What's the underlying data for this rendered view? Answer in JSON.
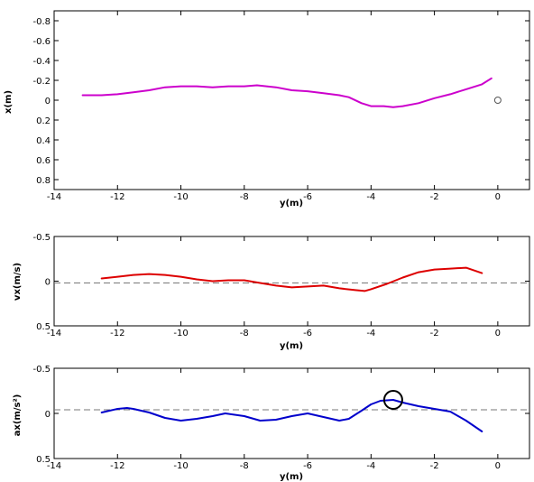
{
  "chart_data": [
    {
      "type": "line",
      "xlabel": "y(m)",
      "ylabel": "x(m)",
      "xlim": [
        -14,
        1
      ],
      "ylim": [
        -0.9,
        0.9
      ],
      "y_inverted": true,
      "xticks": [
        -14,
        -12,
        -10,
        -8,
        -6,
        -4,
        -2,
        0
      ],
      "yticks": [
        -0.8,
        -0.6,
        -0.4,
        -0.2,
        0,
        0.2,
        0.4,
        0.6,
        0.8
      ],
      "ytick_labels": [
        "-0.8",
        "-0.6",
        "-0.4",
        "-0.2",
        "0",
        "0.2",
        "0.4",
        "0.6",
        "0.8"
      ],
      "grid": false,
      "colors": {
        "series": "#cc00cc",
        "marker": "#555555"
      },
      "series": [
        {
          "x": [
            -13.1,
            -12.5,
            -12,
            -11.5,
            -11,
            -10.5,
            -10,
            -9.5,
            -9,
            -8.5,
            -8,
            -7.6,
            -7,
            -6.5,
            -6,
            -5.5,
            -5,
            -4.7,
            -4.3,
            -4,
            -3.6,
            -3.3,
            -3,
            -2.5,
            -2,
            -1.5,
            -1,
            -0.5,
            -0.2
          ],
          "y": [
            -0.05,
            -0.05,
            -0.06,
            -0.08,
            -0.1,
            -0.13,
            -0.14,
            -0.14,
            -0.13,
            -0.14,
            -0.14,
            -0.15,
            -0.13,
            -0.1,
            -0.09,
            -0.07,
            -0.05,
            -0.03,
            0.03,
            0.06,
            0.06,
            0.07,
            0.06,
            0.03,
            -0.02,
            -0.06,
            -0.11,
            -0.16,
            -0.22
          ]
        }
      ],
      "markers": [
        {
          "x": 0,
          "y": 0,
          "shape": "circle"
        }
      ]
    },
    {
      "type": "line",
      "xlabel": "y(m)",
      "ylabel": "vx(m/s)",
      "xlim": [
        -14,
        1
      ],
      "ylim": [
        -0.5,
        0.5
      ],
      "y_inverted": true,
      "xticks": [
        -14,
        -12,
        -10,
        -8,
        -6,
        -4,
        -2,
        0
      ],
      "yticks": [
        -0.5,
        0,
        0.5
      ],
      "ytick_labels": [
        "-0.5",
        "0",
        "0.5"
      ],
      "grid": false,
      "reference_line": {
        "y": 0.02,
        "style": "dashed",
        "color": "#777777"
      },
      "colors": {
        "series": "#dd0000"
      },
      "series": [
        {
          "x": [
            -12.5,
            -12,
            -11.5,
            -11,
            -10.5,
            -10,
            -9.5,
            -9,
            -8.5,
            -8,
            -7.5,
            -7,
            -6.5,
            -6,
            -5.5,
            -5,
            -4.5,
            -4.2,
            -4,
            -3.5,
            -3,
            -2.5,
            -2,
            -1.5,
            -1,
            -0.5
          ],
          "y": [
            -0.03,
            -0.05,
            -0.07,
            -0.08,
            -0.07,
            -0.05,
            -0.02,
            0.0,
            -0.01,
            -0.01,
            0.02,
            0.05,
            0.07,
            0.06,
            0.05,
            0.08,
            0.1,
            0.11,
            0.09,
            0.03,
            -0.04,
            -0.1,
            -0.13,
            -0.14,
            -0.15,
            -0.09
          ]
        }
      ]
    },
    {
      "type": "line",
      "xlabel": "y(m)",
      "ylabel": "ax(m/s²)",
      "xlim": [
        -14,
        1
      ],
      "ylim": [
        -0.5,
        0.5
      ],
      "y_inverted": true,
      "xticks": [
        -14,
        -12,
        -10,
        -8,
        -6,
        -4,
        -2,
        0
      ],
      "yticks": [
        -0.5,
        0,
        0.5
      ],
      "ytick_labels": [
        "-0.5",
        "0",
        "0.5"
      ],
      "grid": false,
      "reference_line": {
        "y": -0.04,
        "style": "dashed",
        "color": "#777777"
      },
      "colors": {
        "series": "#0000cc",
        "marker": "#000000"
      },
      "series": [
        {
          "x": [
            -12.5,
            -12,
            -11.7,
            -11.5,
            -11,
            -10.5,
            -10,
            -9.5,
            -9,
            -8.6,
            -8,
            -7.5,
            -7,
            -6.5,
            -6,
            -5.5,
            -5,
            -4.7,
            -4.3,
            -4,
            -3.7,
            -3.3,
            -3,
            -2.5,
            -2,
            -1.5,
            -1,
            -0.5
          ],
          "y": [
            -0.01,
            -0.05,
            -0.06,
            -0.05,
            -0.01,
            0.05,
            0.08,
            0.06,
            0.03,
            0.0,
            0.03,
            0.08,
            0.07,
            0.03,
            0.0,
            0.04,
            0.08,
            0.06,
            -0.03,
            -0.1,
            -0.14,
            -0.15,
            -0.12,
            -0.08,
            -0.05,
            -0.02,
            0.08,
            0.2
          ]
        }
      ],
      "markers": [
        {
          "x": -3.3,
          "y": -0.15,
          "shape": "circle"
        }
      ]
    }
  ]
}
